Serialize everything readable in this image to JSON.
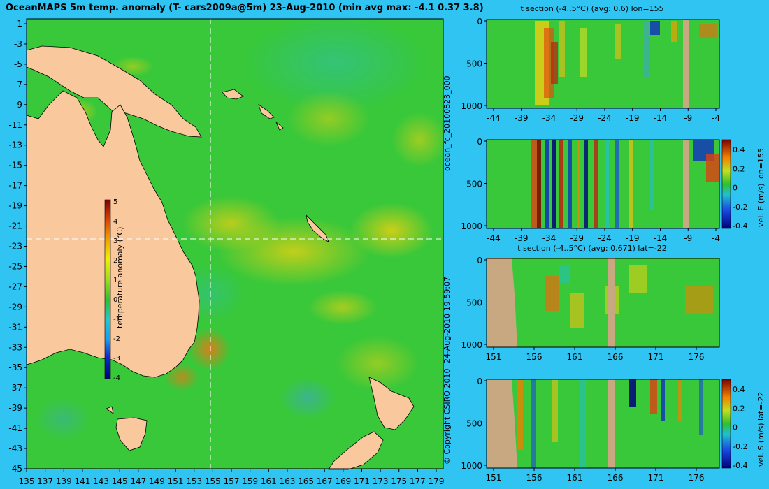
{
  "title": "OceanMAPS 5m temp. anomaly (T- cars2009a@5m) 23-Aug-2010 (min avg max: -4.1 0.37 3.8)",
  "map": {
    "lat_ticks": [
      "-1",
      "-3",
      "-5",
      "-7",
      "-9",
      "-11",
      "-13",
      "-15",
      "-17",
      "-19",
      "-21",
      "-23",
      "-25",
      "-27",
      "-29",
      "-31",
      "-33",
      "-35",
      "-37",
      "-39",
      "-41",
      "-43",
      "-45"
    ],
    "lon_ticks": [
      "135",
      "137",
      "139",
      "141",
      "143",
      "145",
      "147",
      "149",
      "151",
      "153",
      "155",
      "157",
      "159",
      "161",
      "163",
      "165",
      "167",
      "169",
      "171",
      "173",
      "175",
      "177",
      "179"
    ],
    "colorbar": {
      "label": "temperature anomaly (°C)",
      "ticks": [
        "5",
        "4",
        "3",
        "2",
        "1",
        "0",
        "-1",
        "-2",
        "-3",
        "-4"
      ]
    },
    "crosshair": {
      "lon": 155,
      "lat": -22
    }
  },
  "side_text": {
    "run_id": "ocean_fc_20100823_000",
    "run_time": "24-Aug-2010 19:59:07",
    "copyright": "© Copyright CSIRO 2010"
  },
  "panels": [
    {
      "title": "t section (-4..5°C) (avg: 0.6) lon=155",
      "y_ticks": [
        "0",
        "500",
        "1000"
      ],
      "x_ticks": [
        "-44",
        "-39",
        "-34",
        "-29",
        "-24",
        "-19",
        "-14",
        "-9",
        "-4"
      ]
    },
    {
      "title": "",
      "y_ticks": [
        "0",
        "500",
        "1000"
      ],
      "x_ticks": [
        "-44",
        "-39",
        "-34",
        "-29",
        "-24",
        "-19",
        "-14",
        "-9",
        "-4"
      ],
      "colorbar_label": "vel. E (m/s) lon=155",
      "colorbar_ticks": [
        "0.4",
        "0.2",
        "0",
        "-0.2",
        "-0.4"
      ]
    },
    {
      "title": "t section (-4..5°C) (avg: 0.671) lat=-22",
      "y_ticks": [
        "0",
        "500",
        "1000"
      ],
      "x_ticks": [
        "151",
        "156",
        "161",
        "166",
        "171",
        "176"
      ]
    },
    {
      "title": "",
      "y_ticks": [
        "0",
        "500",
        "1000"
      ],
      "x_ticks": [
        "151",
        "156",
        "161",
        "166",
        "171",
        "176"
      ],
      "colorbar_label": "vel. S (m/s) lat=-22",
      "colorbar_ticks": [
        "0.4",
        "0.2",
        "0",
        "-0.2",
        "-0.4"
      ]
    }
  ]
}
